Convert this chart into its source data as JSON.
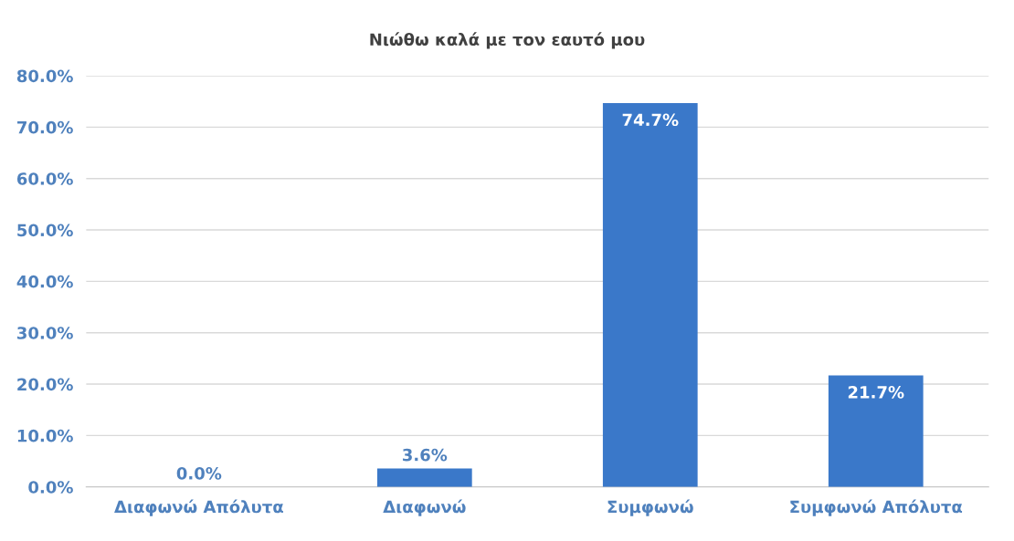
{
  "chart_data": {
    "type": "bar",
    "title": "Νιώθω καλά με τον εαυτό μου",
    "categories": [
      "Διαφωνώ Απόλυτα",
      "Διαφωνώ",
      "Συμφωνώ",
      "Συμφωνώ Απόλυτα"
    ],
    "values": [
      0.0,
      3.6,
      74.7,
      21.7
    ],
    "value_labels": [
      "0.0%",
      "3.6%",
      "74.7%",
      "21.7%"
    ],
    "color": "#3a78c9",
    "ylim": [
      0,
      80
    ],
    "yticks": [
      {
        "value": 0,
        "label": "0.0%"
      },
      {
        "value": 10,
        "label": "10.0%"
      },
      {
        "value": 20,
        "label": "20.0%"
      },
      {
        "value": 30,
        "label": "30.0%"
      },
      {
        "value": 40,
        "label": "40.0%"
      },
      {
        "value": 50,
        "label": "50.0%"
      },
      {
        "value": 60,
        "label": "60.0%"
      },
      {
        "value": 70,
        "label": "70.0%"
      },
      {
        "value": 80,
        "label": "80.0%"
      }
    ],
    "grid": "y",
    "legend": false
  }
}
